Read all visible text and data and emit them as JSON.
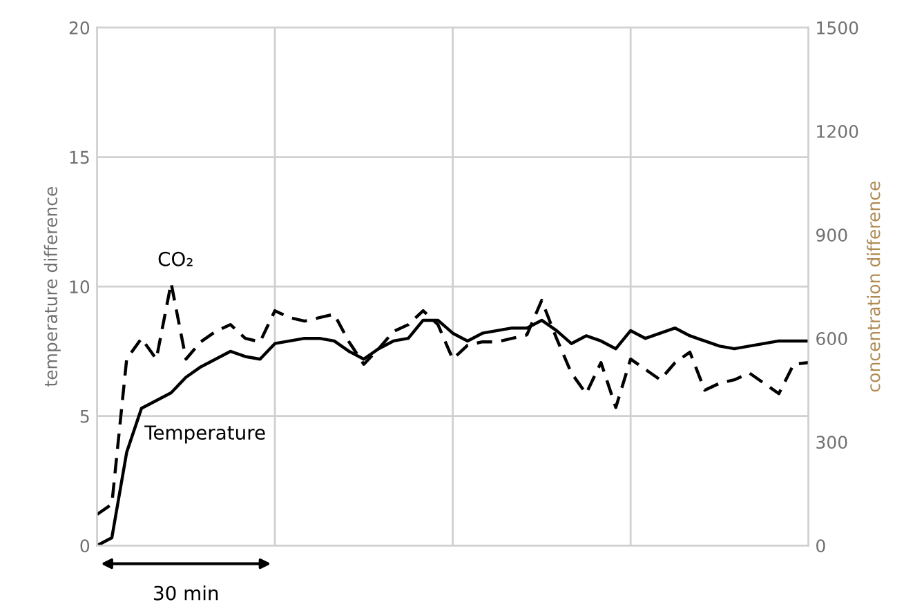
{
  "chart_data": {
    "type": "line",
    "ylabel": "temperature difference",
    "y2label": "concentration difference",
    "categories": [
      null,
      null,
      null,
      null,
      null,
      null,
      null,
      null,
      null,
      null,
      null,
      null,
      null,
      null,
      null,
      null,
      null,
      null,
      null,
      null,
      null,
      null,
      null,
      null,
      null,
      null,
      null,
      null,
      null,
      null,
      null,
      null,
      null,
      null,
      null,
      null,
      null,
      null,
      null,
      null,
      null,
      null,
      null,
      null,
      null,
      null,
      null,
      null,
      null
    ],
    "ylim": [
      0,
      20
    ],
    "yticks": [
      0,
      5,
      10,
      15,
      20
    ],
    "y2lim": [
      0,
      1500
    ],
    "y2ticks": [
      0,
      300,
      600,
      900,
      1200,
      1500
    ],
    "grid": true,
    "legend": false,
    "marker": "none",
    "annotations": [
      "30 min"
    ],
    "series": [
      {
        "name": "Temperature",
        "color": "#000000",
        "line_style": "solid",
        "values": [
          0.0,
          0.3,
          3.6,
          5.3,
          5.6,
          5.9,
          6.5,
          6.9,
          7.2,
          7.5,
          7.3,
          7.2,
          7.8,
          7.9,
          8.0,
          8.0,
          7.9,
          7.5,
          7.2,
          7.6,
          7.9,
          8.0,
          8.7,
          8.7,
          8.2,
          7.9,
          8.2,
          8.3,
          8.4,
          8.4,
          8.7,
          8.3,
          7.8,
          8.1,
          7.9,
          7.6,
          8.3,
          8.0,
          8.2,
          8.4,
          8.1,
          7.9,
          7.7,
          7.6,
          7.7,
          7.8,
          7.9,
          7.9,
          7.9
        ]
      },
      {
        "name": "CO₂",
        "color": "#000000",
        "line_style": "dashed",
        "axis": "y2",
        "values": [
          90,
          120,
          540,
          600,
          540,
          760,
          540,
          590,
          620,
          640,
          600,
          590,
          680,
          660,
          650,
          660,
          670,
          590,
          525,
          570,
          620,
          640,
          680,
          640,
          540,
          580,
          590,
          590,
          600,
          610,
          710,
          600,
          500,
          440,
          530,
          400,
          540,
          510,
          480,
          530,
          560,
          450,
          470,
          480,
          500,
          470,
          440,
          525,
          530
        ]
      }
    ]
  }
}
